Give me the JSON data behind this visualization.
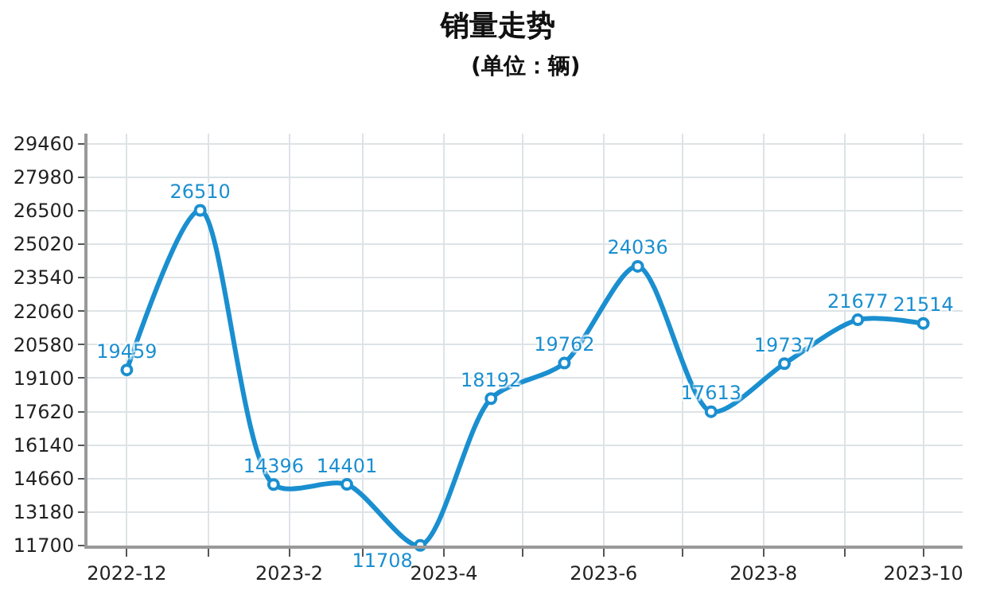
{
  "chart_data": {
    "type": "line",
    "title": "销量走势",
    "subtitle": "(单位：辆)",
    "x": [
      "2022-12-01",
      "2022-12-29",
      "2023-01-26",
      "2023-02-23",
      "2023-03-23",
      "2023-04-19",
      "2023-05-17",
      "2023-06-14",
      "2023-07-12",
      "2023-08-09",
      "2023-09-06",
      "2023-10-01"
    ],
    "series": [
      {
        "color": "#1a8fd0",
        "values": [
          19459,
          26510,
          14396,
          14401,
          11708,
          18192,
          19762,
          24036,
          17613,
          19737,
          21677,
          21514
        ]
      }
    ],
    "data_labels": true,
    "marker": "circle",
    "line_style": "solid",
    "grid": true,
    "xlim": [
      "2022-11-16",
      "2023-10-16"
    ],
    "xticks": [
      {
        "value": "2022-12",
        "label": "2022-12"
      },
      {
        "value": "2023-01",
        "label": null
      },
      {
        "value": "2023-02",
        "label": "2023-2"
      },
      {
        "value": "2023-03",
        "label": null
      },
      {
        "value": "2023-04",
        "label": "2023-4"
      },
      {
        "value": "2023-05",
        "label": null
      },
      {
        "value": "2023-06",
        "label": "2023-6"
      },
      {
        "value": "2023-07",
        "label": null
      },
      {
        "value": "2023-08",
        "label": "2023-8"
      },
      {
        "value": "2023-09",
        "label": null
      },
      {
        "value": "2023-10",
        "label": "2023-10"
      }
    ],
    "ylim": [
      11700,
      29900
    ],
    "yticks": [
      11700,
      13180,
      14660,
      16140,
      17620,
      19100,
      20580,
      22060,
      23540,
      25020,
      26500,
      27980,
      29460
    ]
  }
}
